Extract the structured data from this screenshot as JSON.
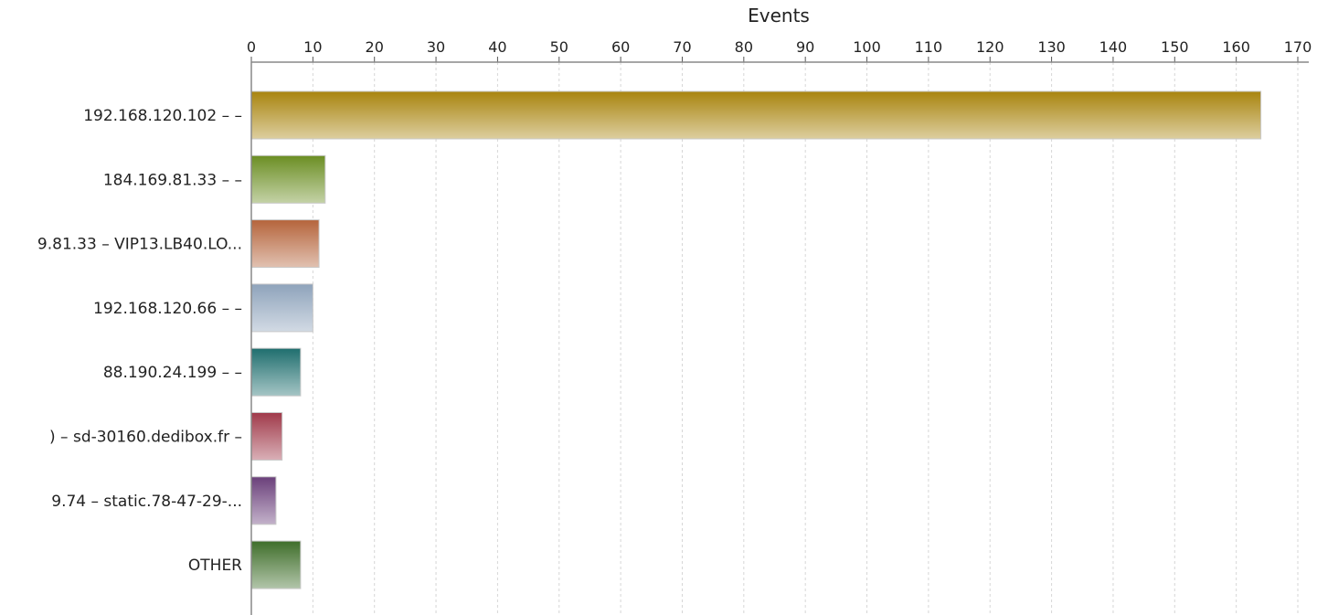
{
  "chart_data": {
    "type": "bar",
    "orientation": "horizontal",
    "title": "",
    "xlabel": "Events",
    "ylabel": "",
    "xlim": [
      0,
      170
    ],
    "x_ticks": [
      0,
      10,
      20,
      30,
      40,
      50,
      60,
      70,
      80,
      90,
      100,
      110,
      120,
      130,
      140,
      150,
      160,
      170
    ],
    "grid": true,
    "axis_position": "top",
    "categories": [
      "192.168.120.102 –  –",
      "184.169.81.33 –  –",
      "9.81.33 – VIP13.LB40.LO...",
      "192.168.120.66 –  –",
      "88.190.24.199 –  –",
      ") – sd-30160.dedibox.fr –",
      "9.74 – static.78-47-29-...",
      "OTHER"
    ],
    "values": [
      164,
      12,
      11,
      10,
      8,
      5,
      4,
      8
    ],
    "colors": [
      "#a8840e",
      "#6b8e23",
      "#b5643b",
      "#8ea3bb",
      "#1f6e6e",
      "#a03a4a",
      "#6a3f7a",
      "#3f6e2a"
    ]
  }
}
